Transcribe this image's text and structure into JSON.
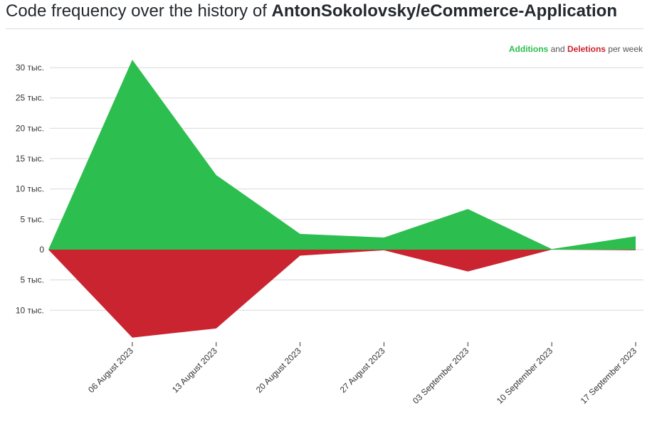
{
  "header": {
    "title_prefix": "Code frequency over the history of",
    "repo": "AntonSokolovsky/eCommerce-Application"
  },
  "legend": {
    "additions": "Additions",
    "and": "and",
    "deletions": "Deletions",
    "suffix": "per week"
  },
  "colors": {
    "additions": "#2cbe4e",
    "deletions": "#cb2431",
    "grid": "#d9d9d9"
  },
  "chart_data": {
    "type": "area",
    "x": [
      "",
      "06 August 2023",
      "13 August 2023",
      "20 August 2023",
      "27 August 2023",
      "03 September 2023",
      "10 September 2023",
      "17 September 2023"
    ],
    "series": [
      {
        "name": "Additions",
        "values": [
          0,
          31300,
          12300,
          2600,
          2000,
          6700,
          100,
          2200
        ]
      },
      {
        "name": "Deletions",
        "values": [
          0,
          -14500,
          -13000,
          -1000,
          -100,
          -3600,
          0,
          -100
        ]
      }
    ],
    "yticks": [
      {
        "value": 30000,
        "label": "30 тыс."
      },
      {
        "value": 25000,
        "label": "25 тыс."
      },
      {
        "value": 20000,
        "label": "20 тыс."
      },
      {
        "value": 15000,
        "label": "15 тыс."
      },
      {
        "value": 10000,
        "label": "10 тыс."
      },
      {
        "value": 5000,
        "label": "5 тыс."
      },
      {
        "value": 0,
        "label": "0"
      },
      {
        "value": -5000,
        "label": "5 тыс."
      },
      {
        "value": -10000,
        "label": "10 тыс."
      }
    ],
    "ylim": [
      -14800,
      31500
    ],
    "grid": true,
    "legend_position": "top-right"
  }
}
